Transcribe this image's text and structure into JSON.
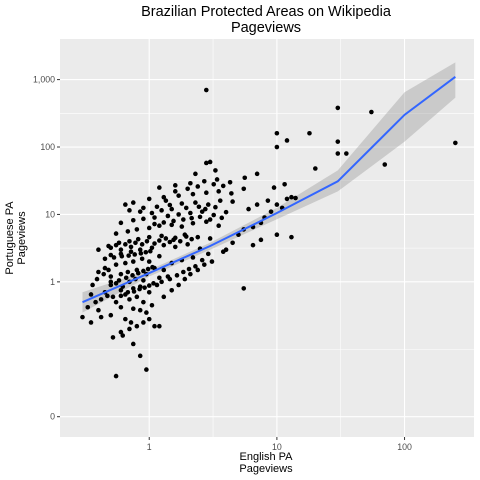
{
  "chart_data": {
    "type": "scatter",
    "title_lines": [
      "Brazilian Protected Areas on Wikipedia",
      "Pageviews"
    ],
    "xlabel_lines": [
      "English PA",
      "Pageviews"
    ],
    "ylabel_lines": [
      "Portuguese PA",
      "Pageviews"
    ],
    "x_scale": "log",
    "y_scale": "log",
    "xlim": [
      0.2,
      350
    ],
    "ylim": [
      0.005,
      4000
    ],
    "x_ticks": [
      {
        "value": 1,
        "label": "1"
      },
      {
        "value": 10,
        "label": "10"
      },
      {
        "value": 100,
        "label": "100"
      }
    ],
    "y_ticks": [
      {
        "value": 0.01,
        "label": "0"
      },
      {
        "value": 1,
        "label": "1"
      },
      {
        "value": 10,
        "label": "10"
      },
      {
        "value": 100,
        "label": "100"
      },
      {
        "value": 1000,
        "label": "1,000"
      }
    ],
    "grid": true,
    "fit": {
      "method": "linear (log-log)",
      "color": "#3366ff",
      "x_range": [
        0.3,
        250
      ],
      "line": [
        [
          0.3,
          0.5
        ],
        [
          1,
          1.35
        ],
        [
          3,
          3.4
        ],
        [
          10,
          10.5
        ],
        [
          30,
          31
        ],
        [
          100,
          300
        ],
        [
          250,
          1100
        ]
      ],
      "band_lower": [
        [
          0.3,
          0.35
        ],
        [
          1,
          1.2
        ],
        [
          3,
          3.0
        ],
        [
          10,
          8.5
        ],
        [
          30,
          22
        ],
        [
          100,
          120
        ],
        [
          250,
          540
        ]
      ],
      "band_upper": [
        [
          0.3,
          0.7
        ],
        [
          1,
          1.5
        ],
        [
          3,
          3.8
        ],
        [
          10,
          12.5
        ],
        [
          30,
          45
        ],
        [
          100,
          650
        ],
        [
          250,
          1800
        ]
      ]
    },
    "points": [
      [
        0.55,
        0.04
      ],
      [
        0.95,
        0.05
      ],
      [
        0.85,
        0.08
      ],
      [
        1.1,
        0.22
      ],
      [
        1.2,
        0.22
      ],
      [
        0.72,
        0.25
      ],
      [
        0.65,
        0.28
      ],
      [
        0.35,
        0.25
      ],
      [
        0.3,
        0.3
      ],
      [
        0.42,
        0.3
      ],
      [
        0.5,
        0.32
      ],
      [
        0.4,
        0.38
      ],
      [
        0.6,
        0.42
      ],
      [
        0.75,
        0.4
      ],
      [
        0.85,
        0.38
      ],
      [
        0.95,
        0.35
      ],
      [
        1.05,
        0.45
      ],
      [
        0.55,
        0.5
      ],
      [
        0.7,
        0.55
      ],
      [
        0.8,
        0.6
      ],
      [
        0.9,
        0.5
      ],
      [
        0.35,
        0.65
      ],
      [
        0.45,
        0.7
      ],
      [
        0.6,
        0.75
      ],
      [
        0.65,
        0.65
      ],
      [
        0.75,
        0.8
      ],
      [
        0.85,
        0.85
      ],
      [
        1.0,
        0.7
      ],
      [
        1.15,
        0.9
      ],
      [
        0.5,
        0.9
      ],
      [
        0.55,
        0.95
      ],
      [
        0.62,
        0.85
      ],
      [
        0.7,
        1.0
      ],
      [
        0.78,
        1.1
      ],
      [
        0.9,
        1.05
      ],
      [
        1.2,
        1.15
      ],
      [
        1.4,
        1.2
      ],
      [
        0.5,
        1.2
      ],
      [
        0.6,
        1.3
      ],
      [
        0.68,
        1.4
      ],
      [
        0.8,
        1.5
      ],
      [
        0.95,
        1.3
      ],
      [
        1.1,
        1.6
      ],
      [
        1.3,
        1.5
      ],
      [
        0.4,
        1.4
      ],
      [
        0.45,
        1.6
      ],
      [
        0.55,
        1.8
      ],
      [
        0.65,
        1.9
      ],
      [
        0.75,
        2.0
      ],
      [
        0.88,
        2.2
      ],
      [
        1.0,
        2.0
      ],
      [
        1.2,
        2.4
      ],
      [
        1.5,
        1.9
      ],
      [
        1.8,
        2.1
      ],
      [
        2.2,
        2.3
      ],
      [
        0.5,
        2.5
      ],
      [
        0.6,
        2.6
      ],
      [
        0.72,
        2.8
      ],
      [
        0.85,
        3.0
      ],
      [
        1.05,
        3.2
      ],
      [
        1.3,
        3.5
      ],
      [
        1.6,
        3.3
      ],
      [
        2.0,
        3.6
      ],
      [
        2.5,
        3.1
      ],
      [
        0.4,
        3.0
      ],
      [
        0.48,
        3.4
      ],
      [
        0.58,
        3.8
      ],
      [
        0.7,
        4.0
      ],
      [
        0.82,
        4.3
      ],
      [
        1.0,
        4.6
      ],
      [
        1.25,
        4.8
      ],
      [
        1.55,
        4.2
      ],
      [
        1.9,
        5.0
      ],
      [
        2.4,
        4.6
      ],
      [
        3.0,
        4.4
      ],
      [
        0.55,
        5.2
      ],
      [
        0.68,
        5.6
      ],
      [
        0.8,
        6.0
      ],
      [
        1.0,
        6.3
      ],
      [
        1.2,
        6.8
      ],
      [
        1.5,
        7.0
      ],
      [
        1.8,
        6.6
      ],
      [
        2.2,
        7.4
      ],
      [
        2.8,
        7.8
      ],
      [
        3.5,
        6.8
      ],
      [
        0.6,
        7.5
      ],
      [
        0.75,
        8.2
      ],
      [
        0.9,
        8.6
      ],
      [
        1.1,
        9.0
      ],
      [
        1.4,
        9.5
      ],
      [
        1.7,
        10.0
      ],
      [
        2.1,
        10.5
      ],
      [
        2.6,
        11.0
      ],
      [
        3.2,
        9.8
      ],
      [
        4.0,
        10.8
      ],
      [
        0.7,
        11.5
      ],
      [
        0.9,
        12.5
      ],
      [
        1.15,
        13.0
      ],
      [
        1.45,
        13.8
      ],
      [
        1.8,
        14.5
      ],
      [
        2.3,
        15.0
      ],
      [
        2.9,
        14.0
      ],
      [
        3.6,
        16.0
      ],
      [
        4.5,
        15.5
      ],
      [
        1.0,
        17.0
      ],
      [
        1.3,
        18.0
      ],
      [
        1.7,
        19.0
      ],
      [
        2.2,
        20.0
      ],
      [
        2.8,
        21.0
      ],
      [
        3.5,
        22.0
      ],
      [
        4.4,
        20.5
      ],
      [
        5.5,
        24.0
      ],
      [
        1.2,
        25.0
      ],
      [
        1.6,
        27.0
      ],
      [
        2.1,
        29.0
      ],
      [
        2.7,
        31.0
      ],
      [
        3.4,
        33.0
      ],
      [
        4.3,
        30.0
      ],
      [
        5.6,
        35.0
      ],
      [
        7.0,
        40.0
      ],
      [
        2.3,
        40.0
      ],
      [
        2.8,
        58.0
      ],
      [
        3.0,
        60.0
      ],
      [
        3.3,
        45.0
      ],
      [
        2.8,
        700.0
      ],
      [
        0.5,
        1.0
      ],
      [
        0.58,
        1.05
      ],
      [
        0.66,
        1.15
      ],
      [
        0.74,
        1.25
      ],
      [
        0.82,
        1.35
      ],
      [
        0.9,
        1.45
      ],
      [
        0.98,
        1.55
      ],
      [
        1.06,
        1.65
      ],
      [
        0.52,
        0.6
      ],
      [
        0.6,
        0.62
      ],
      [
        0.68,
        0.7
      ],
      [
        0.76,
        0.72
      ],
      [
        0.84,
        0.78
      ],
      [
        0.92,
        0.82
      ],
      [
        1.0,
        0.88
      ],
      [
        1.08,
        0.95
      ],
      [
        0.45,
        2.2
      ],
      [
        0.53,
        2.3
      ],
      [
        0.61,
        2.4
      ],
      [
        0.69,
        2.45
      ],
      [
        0.77,
        2.55
      ],
      [
        0.86,
        2.65
      ],
      [
        0.94,
        2.75
      ],
      [
        1.02,
        2.85
      ],
      [
        1.3,
        0.6
      ],
      [
        1.5,
        0.75
      ],
      [
        1.7,
        0.9
      ],
      [
        1.9,
        1.1
      ],
      [
        2.1,
        1.3
      ],
      [
        2.4,
        1.5
      ],
      [
        2.7,
        1.8
      ],
      [
        3.1,
        2.0
      ],
      [
        1.25,
        1.0
      ],
      [
        1.45,
        1.1
      ],
      [
        1.65,
        1.25
      ],
      [
        1.85,
        1.4
      ],
      [
        2.05,
        1.55
      ],
      [
        2.3,
        1.7
      ],
      [
        2.6,
        2.1
      ],
      [
        2.9,
        2.6
      ],
      [
        0.38,
        0.5
      ],
      [
        0.42,
        0.55
      ],
      [
        0.47,
        0.62
      ],
      [
        0.33,
        0.42
      ],
      [
        0.36,
        0.9
      ],
      [
        0.39,
        1.1
      ],
      [
        0.44,
        1.3
      ],
      [
        0.48,
        1.5
      ],
      [
        0.6,
        0.18
      ],
      [
        0.7,
        0.2
      ],
      [
        0.8,
        0.22
      ],
      [
        0.9,
        0.25
      ],
      [
        1.0,
        0.28
      ],
      [
        0.52,
        0.15
      ],
      [
        0.62,
        0.16
      ],
      [
        0.75,
        0.12
      ],
      [
        5.0,
        5.0
      ],
      [
        5.5,
        6.0
      ],
      [
        6.5,
        6.5
      ],
      [
        7.5,
        7.5
      ],
      [
        8.0,
        9.0
      ],
      [
        6.0,
        12.0
      ],
      [
        7.0,
        14.0
      ],
      [
        8.5,
        16.0
      ],
      [
        9.0,
        11.0
      ],
      [
        10.0,
        14.0
      ],
      [
        11.0,
        12.5
      ],
      [
        12.0,
        17.0
      ],
      [
        13.0,
        18.0
      ],
      [
        14.0,
        17.5
      ],
      [
        9.5,
        25.0
      ],
      [
        11.5,
        28.0
      ],
      [
        10.0,
        5.0
      ],
      [
        13.0,
        4.6
      ],
      [
        5.5,
        0.8
      ],
      [
        4.0,
        3.0
      ],
      [
        4.5,
        3.8
      ],
      [
        3.8,
        2.8
      ],
      [
        6.5,
        3.5
      ],
      [
        7.5,
        4.2
      ],
      [
        10.0,
        100.0
      ],
      [
        12.0,
        125.0
      ],
      [
        10.0,
        160.0
      ],
      [
        18.0,
        160.0
      ],
      [
        20.0,
        48.0
      ],
      [
        30.0,
        80.0
      ],
      [
        30.0,
        120.0
      ],
      [
        30.0,
        380.0
      ],
      [
        35.0,
        80.0
      ],
      [
        55.0,
        330.0
      ],
      [
        70.0,
        55.0
      ],
      [
        250.0,
        115.0
      ],
      [
        0.5,
        3.2
      ],
      [
        0.55,
        3.5
      ],
      [
        0.6,
        3.0
      ],
      [
        0.65,
        3.6
      ],
      [
        0.72,
        3.3
      ],
      [
        0.78,
        3.8
      ],
      [
        0.88,
        3.6
      ],
      [
        0.96,
        4.0
      ],
      [
        1.1,
        3.7
      ],
      [
        1.2,
        4.1
      ],
      [
        1.35,
        4.4
      ],
      [
        1.45,
        3.9
      ],
      [
        1.6,
        4.5
      ],
      [
        1.75,
        4.0
      ],
      [
        1.95,
        4.7
      ],
      [
        2.15,
        4.3
      ],
      [
        0.85,
        11.0
      ],
      [
        1.05,
        10.5
      ],
      [
        1.25,
        11.5
      ],
      [
        1.5,
        12.0
      ],
      [
        1.95,
        12.5
      ],
      [
        2.45,
        13.0
      ],
      [
        2.75,
        12.0
      ],
      [
        3.3,
        12.8
      ],
      [
        1.1,
        7.2
      ],
      [
        1.3,
        7.6
      ],
      [
        1.55,
        8.0
      ],
      [
        1.85,
        8.4
      ],
      [
        2.15,
        8.8
      ],
      [
        2.5,
        9.2
      ],
      [
        3.0,
        8.4
      ],
      [
        3.7,
        8.9
      ],
      [
        0.65,
        14.0
      ],
      [
        0.75,
        15.0
      ],
      [
        1.35,
        16.0
      ],
      [
        1.6,
        22.0
      ],
      [
        2.0,
        24.0
      ],
      [
        2.4,
        26.0
      ],
      [
        3.2,
        28.0
      ],
      [
        3.8,
        26.5
      ]
    ]
  }
}
